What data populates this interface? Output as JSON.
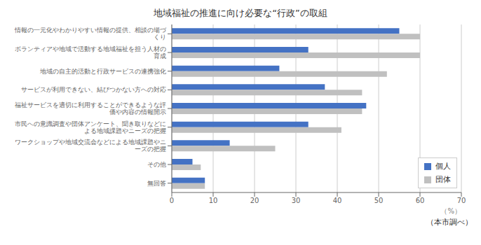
{
  "chart_data": {
    "type": "bar",
    "orientation": "horizontal",
    "title": "地域福祉の推進に向け必要な“行政”の取組",
    "categories": [
      "情報の一元化やわかりやすい情報の提供、相談の場づくり",
      "ボランティアや地域で活動する地域福祉を担う人材の育成",
      "地域の自主的活動と行政サービスの連携強化",
      "サービスが利用できない、結びつかない方への対応",
      "福祉サービスを適切に利用することができるような評価や内容の情報開示",
      "市民への意識調査や団体アンケート、聞き取りなどによる地域課題やニーズの把握",
      "ワークショップや地域交流会などによる地域課題やニーズの把握",
      "その他",
      "無回答"
    ],
    "series": [
      {
        "name": "個人",
        "color": "#4472C4",
        "values": [
          55,
          33,
          26,
          37,
          47,
          33,
          14,
          5,
          8
        ]
      },
      {
        "name": "団体",
        "color": "#C0C0C0",
        "values": [
          60,
          60,
          52,
          46,
          46,
          41,
          25,
          7,
          8
        ]
      }
    ],
    "xlabel": "（%）",
    "xlim": [
      0,
      70
    ],
    "xticks": [
      0,
      10,
      20,
      30,
      40,
      50,
      60,
      70
    ],
    "grid": true,
    "legend": "lower right",
    "annotations": [
      "（本市調べ）"
    ]
  }
}
